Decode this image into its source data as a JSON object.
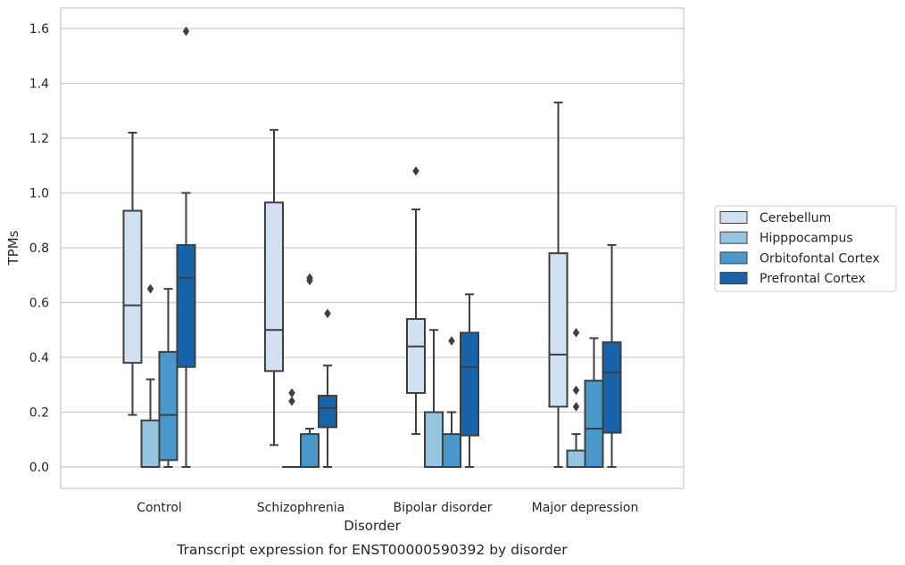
{
  "chart_data": {
    "type": "box",
    "caption": "Transcript expression for ENST00000590392 by disorder",
    "xlabel": "Disorder",
    "ylabel": "TPMs",
    "ylim": [
      -0.08,
      1.67
    ],
    "yticks": [
      0.0,
      0.2,
      0.4,
      0.6,
      0.8,
      1.0,
      1.2,
      1.4,
      1.6
    ],
    "ytick_labels": [
      "0.0",
      "0.2",
      "0.4",
      "0.6",
      "0.8",
      "1.0",
      "1.2",
      "1.4",
      "1.6"
    ],
    "grid": "horizontal",
    "legend_position": "right",
    "categories": [
      "Control",
      "Schizophrenia",
      "Bipolar disorder",
      "Major depression"
    ],
    "series": [
      {
        "name": "Cerebellum",
        "color": "#d0e1f2",
        "boxes": [
          {
            "whisker_low": 0.19,
            "q1": 0.38,
            "median": 0.59,
            "q3": 0.935,
            "whisker_high": 1.22,
            "outliers": []
          },
          {
            "whisker_low": 0.08,
            "q1": 0.35,
            "median": 0.5,
            "q3": 0.965,
            "whisker_high": 1.23,
            "outliers": []
          },
          {
            "whisker_low": 0.12,
            "q1": 0.27,
            "median": 0.44,
            "q3": 0.54,
            "whisker_high": 0.94,
            "outliers": [
              1.08
            ]
          },
          {
            "whisker_low": 0.0,
            "q1": 0.22,
            "median": 0.41,
            "q3": 0.78,
            "whisker_high": 1.33,
            "outliers": []
          }
        ]
      },
      {
        "name": "Hipppocampus",
        "color": "#94c4df",
        "boxes": [
          {
            "whisker_low": 0.0,
            "q1": 0.0,
            "median": 0.0,
            "q3": 0.17,
            "whisker_high": 0.32,
            "outliers": [
              0.65
            ]
          },
          {
            "whisker_low": 0.0,
            "q1": 0.0,
            "median": 0.0,
            "q3": 0.0,
            "whisker_high": 0.0,
            "outliers": [
              0.27,
              0.24
            ]
          },
          {
            "whisker_low": 0.0,
            "q1": 0.0,
            "median": 0.0,
            "q3": 0.2,
            "whisker_high": 0.5,
            "outliers": []
          },
          {
            "whisker_low": 0.0,
            "q1": 0.0,
            "median": 0.0,
            "q3": 0.06,
            "whisker_high": 0.12,
            "outliers": [
              0.49,
              0.28,
              0.22
            ]
          }
        ]
      },
      {
        "name": "Orbitofontal Cortex",
        "color": "#4a98c9",
        "boxes": [
          {
            "whisker_low": 0.0,
            "q1": 0.025,
            "median": 0.19,
            "q3": 0.42,
            "whisker_high": 0.65,
            "outliers": []
          },
          {
            "whisker_low": 0.0,
            "q1": 0.0,
            "median": 0.0,
            "q3": 0.12,
            "whisker_high": 0.14,
            "outliers": [
              0.69,
              0.68
            ]
          },
          {
            "whisker_low": 0.0,
            "q1": 0.0,
            "median": 0.0,
            "q3": 0.12,
            "whisker_high": 0.2,
            "outliers": [
              0.46
            ]
          },
          {
            "whisker_low": 0.0,
            "q1": 0.0,
            "median": 0.14,
            "q3": 0.315,
            "whisker_high": 0.47,
            "outliers": []
          }
        ]
      },
      {
        "name": "Prefrontal Cortex",
        "color": "#1764ab",
        "boxes": [
          {
            "whisker_low": 0.0,
            "q1": 0.365,
            "median": 0.69,
            "q3": 0.81,
            "whisker_high": 1.0,
            "outliers": [
              1.59
            ]
          },
          {
            "whisker_low": 0.0,
            "q1": 0.145,
            "median": 0.215,
            "q3": 0.26,
            "whisker_high": 0.37,
            "outliers": [
              0.56
            ]
          },
          {
            "whisker_low": 0.0,
            "q1": 0.115,
            "median": 0.365,
            "q3": 0.49,
            "whisker_high": 0.63,
            "outliers": []
          },
          {
            "whisker_low": 0.0,
            "q1": 0.125,
            "median": 0.345,
            "q3": 0.455,
            "whisker_high": 0.81,
            "outliers": []
          }
        ]
      }
    ]
  }
}
